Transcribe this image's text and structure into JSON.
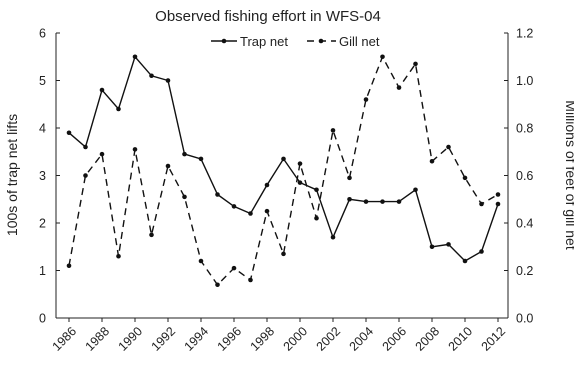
{
  "chart_data": {
    "type": "line",
    "title": "Observed fishing effort in WFS-04",
    "ylabel_left": "100s of trap net lifts",
    "ylabel_right": "Millions of feet of gill net",
    "ylim_left": [
      0,
      6
    ],
    "ylim_right": [
      0,
      1.2
    ],
    "yticks_left": [
      "0",
      "1",
      "2",
      "3",
      "4",
      "5",
      "6"
    ],
    "yticks_right": [
      "0.0",
      "0.2",
      "0.4",
      "0.6",
      "0.8",
      "1.0",
      "1.2"
    ],
    "xlim": [
      1986,
      2012
    ],
    "xticks": [
      "1986",
      "1988",
      "1990",
      "1992",
      "1994",
      "1996",
      "1998",
      "2000",
      "2002",
      "2004",
      "2006",
      "2008",
      "2010",
      "2012"
    ],
    "legend_position": "top-center",
    "series": [
      {
        "name": "Trap net",
        "axis": "left",
        "style": "solid",
        "x": [
          1986,
          1987,
          1988,
          1989,
          1990,
          1991,
          1992,
          1993,
          1994,
          1995,
          1996,
          1997,
          1998,
          1999,
          2000,
          2001,
          2002,
          2003,
          2004,
          2005,
          2006,
          2007,
          2008,
          2009,
          2010,
          2011,
          2012
        ],
        "values": [
          3.9,
          3.6,
          4.8,
          4.4,
          5.5,
          5.1,
          5.0,
          3.45,
          3.35,
          2.6,
          2.35,
          2.2,
          2.8,
          3.35,
          2.85,
          2.7,
          1.7,
          2.5,
          2.45,
          2.45,
          2.45,
          2.7,
          1.5,
          1.55,
          1.2,
          1.4,
          2.4
        ]
      },
      {
        "name": "Gill net",
        "axis": "right",
        "style": "dashed",
        "x": [
          1986,
          1987,
          1988,
          1989,
          1990,
          1991,
          1992,
          1993,
          1994,
          1995,
          1996,
          1997,
          1998,
          1999,
          2000,
          2001,
          2002,
          2003,
          2004,
          2005,
          2006,
          2007,
          2008,
          2009,
          2010,
          2011,
          2012
        ],
        "values": [
          0.22,
          0.6,
          0.69,
          0.26,
          0.71,
          0.35,
          0.64,
          0.51,
          0.24,
          0.14,
          0.21,
          0.16,
          0.45,
          0.27,
          0.65,
          0.42,
          0.79,
          0.59,
          0.92,
          1.1,
          0.97,
          1.07,
          0.66,
          0.72,
          0.59,
          0.48,
          0.52
        ]
      }
    ]
  }
}
